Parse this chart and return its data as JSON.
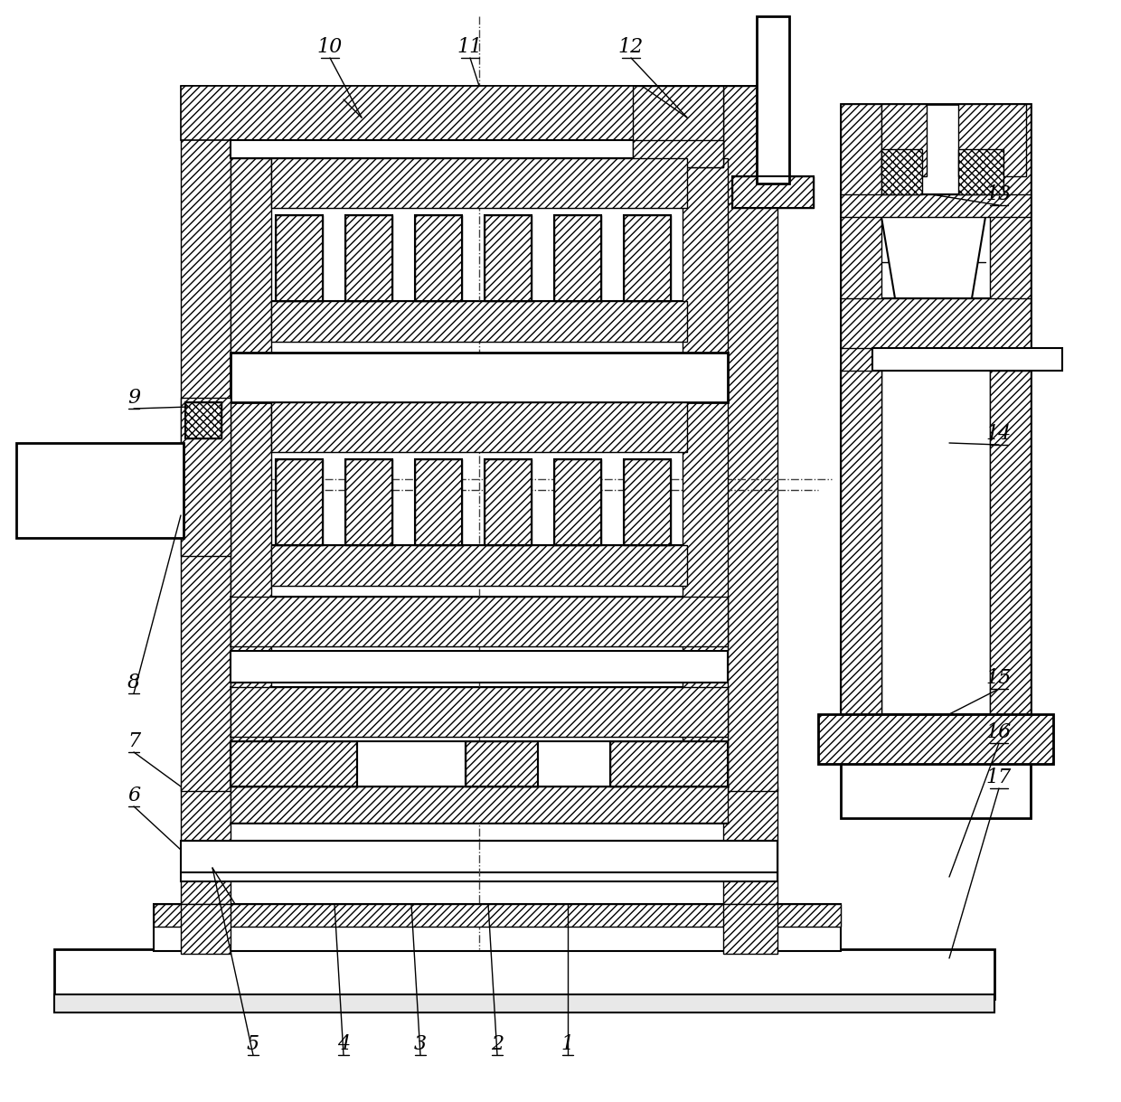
{
  "background_color": "#ffffff",
  "line_color": "#000000",
  "figsize": [
    12.4,
    12.19
  ],
  "dpi": 100
}
